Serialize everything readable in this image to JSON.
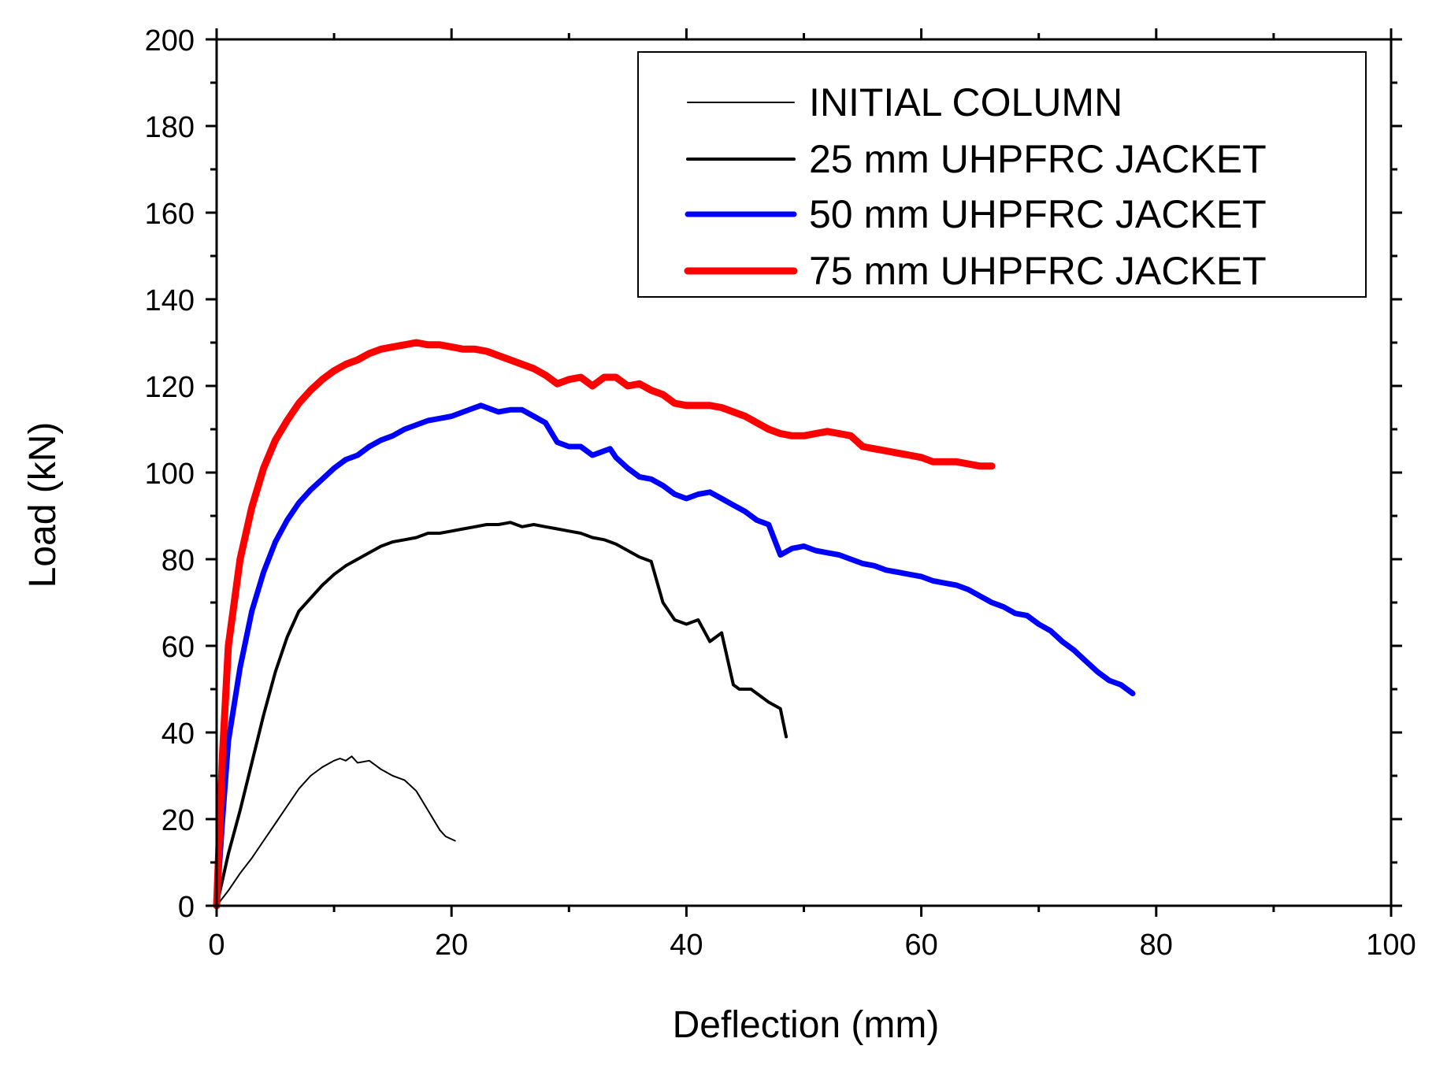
{
  "chart_data": {
    "type": "line",
    "title": "",
    "xlabel": "Deflection (mm)",
    "ylabel": "Load (kN)",
    "xlim": [
      0,
      100
    ],
    "ylim": [
      0,
      200
    ],
    "xticks": [
      0,
      20,
      40,
      60,
      80,
      100
    ],
    "yticks": [
      0,
      20,
      40,
      60,
      80,
      100,
      120,
      140,
      160,
      180,
      200
    ],
    "grid": false,
    "legend_position": "top-right",
    "series": [
      {
        "name": "INITIAL COLUMN",
        "color": "#000000",
        "style": "thin",
        "points": [
          [
            0,
            0
          ],
          [
            1,
            3.5
          ],
          [
            2,
            7.5
          ],
          [
            3,
            11
          ],
          [
            4,
            15
          ],
          [
            5,
            19
          ],
          [
            6,
            23
          ],
          [
            7,
            27
          ],
          [
            8,
            30
          ],
          [
            9,
            32
          ],
          [
            10,
            33.5
          ],
          [
            10.5,
            34
          ],
          [
            11,
            33.5
          ],
          [
            11.5,
            34.5
          ],
          [
            12,
            33
          ],
          [
            13,
            33.5
          ],
          [
            13.5,
            32.5
          ],
          [
            14,
            31.5
          ],
          [
            15,
            30
          ],
          [
            16,
            29
          ],
          [
            17,
            26.5
          ],
          [
            18,
            22
          ],
          [
            19,
            17.5
          ],
          [
            19.5,
            16
          ],
          [
            20.3,
            15
          ]
        ]
      },
      {
        "name": "25 mm UHPFRC JACKET",
        "color": "#000000",
        "style": "medium",
        "points": [
          [
            0,
            0
          ],
          [
            0.5,
            6
          ],
          [
            1,
            12
          ],
          [
            2,
            22
          ],
          [
            3,
            33
          ],
          [
            4,
            44
          ],
          [
            5,
            54
          ],
          [
            6,
            62
          ],
          [
            7,
            68
          ],
          [
            8,
            71
          ],
          [
            9,
            74
          ],
          [
            10,
            76.5
          ],
          [
            11,
            78.5
          ],
          [
            12,
            80
          ],
          [
            13,
            81.5
          ],
          [
            14,
            83
          ],
          [
            15,
            84
          ],
          [
            16,
            84.5
          ],
          [
            17,
            85
          ],
          [
            18,
            86
          ],
          [
            19,
            86
          ],
          [
            20,
            86.5
          ],
          [
            21,
            87
          ],
          [
            22,
            87.5
          ],
          [
            23,
            88
          ],
          [
            24,
            88
          ],
          [
            25,
            88.5
          ],
          [
            26,
            87.5
          ],
          [
            27,
            88
          ],
          [
            28,
            87.5
          ],
          [
            29,
            87
          ],
          [
            30,
            86.5
          ],
          [
            31,
            86
          ],
          [
            32,
            85
          ],
          [
            33,
            84.5
          ],
          [
            34,
            83.5
          ],
          [
            35,
            82
          ],
          [
            36,
            80.5
          ],
          [
            37,
            79.5
          ],
          [
            38,
            70
          ],
          [
            39,
            66
          ],
          [
            40,
            65
          ],
          [
            41,
            66
          ],
          [
            42,
            61
          ],
          [
            42.5,
            62
          ],
          [
            43,
            63
          ],
          [
            44,
            51
          ],
          [
            44.5,
            50
          ],
          [
            45.5,
            50
          ],
          [
            46,
            49
          ],
          [
            47,
            47
          ],
          [
            48,
            45.5
          ],
          [
            48.5,
            39
          ]
        ]
      },
      {
        "name": "50 mm UHPFRC JACKET",
        "color": "#0000ff",
        "style": "thick",
        "points": [
          [
            0,
            0
          ],
          [
            0.5,
            20
          ],
          [
            1,
            38
          ],
          [
            2,
            55
          ],
          [
            3,
            68
          ],
          [
            4,
            77
          ],
          [
            5,
            84
          ],
          [
            6,
            89
          ],
          [
            7,
            93
          ],
          [
            8,
            96
          ],
          [
            9,
            98.5
          ],
          [
            10,
            101
          ],
          [
            11,
            103
          ],
          [
            12,
            104
          ],
          [
            13,
            106
          ],
          [
            14,
            107.5
          ],
          [
            15,
            108.5
          ],
          [
            16,
            110
          ],
          [
            17,
            111
          ],
          [
            18,
            112
          ],
          [
            19,
            112.5
          ],
          [
            20,
            113
          ],
          [
            21,
            114
          ],
          [
            22,
            115
          ],
          [
            22.5,
            115.5
          ],
          [
            23,
            115
          ],
          [
            24,
            114
          ],
          [
            25,
            114.5
          ],
          [
            26,
            114.5
          ],
          [
            27,
            113
          ],
          [
            28,
            111.5
          ],
          [
            29,
            107
          ],
          [
            30,
            106
          ],
          [
            31,
            106
          ],
          [
            32,
            104
          ],
          [
            33,
            105
          ],
          [
            33.5,
            105.5
          ],
          [
            34,
            103.5
          ],
          [
            35,
            101
          ],
          [
            36,
            99
          ],
          [
            37,
            98.5
          ],
          [
            38,
            97
          ],
          [
            39,
            95
          ],
          [
            40,
            94
          ],
          [
            41,
            95
          ],
          [
            42,
            95.5
          ],
          [
            43,
            94
          ],
          [
            44,
            92.5
          ],
          [
            45,
            91
          ],
          [
            46,
            89
          ],
          [
            47,
            88
          ],
          [
            48,
            81
          ],
          [
            49,
            82.5
          ],
          [
            50,
            83
          ],
          [
            51,
            82
          ],
          [
            52,
            81.5
          ],
          [
            53,
            81
          ],
          [
            54,
            80
          ],
          [
            55,
            79
          ],
          [
            56,
            78.5
          ],
          [
            57,
            77.5
          ],
          [
            58,
            77
          ],
          [
            59,
            76.5
          ],
          [
            60,
            76
          ],
          [
            61,
            75
          ],
          [
            62,
            74.5
          ],
          [
            63,
            74
          ],
          [
            64,
            73
          ],
          [
            65,
            71.5
          ],
          [
            66,
            70
          ],
          [
            67,
            69
          ],
          [
            68,
            67.5
          ],
          [
            69,
            67
          ],
          [
            70,
            65
          ],
          [
            71,
            63.5
          ],
          [
            72,
            61
          ],
          [
            73,
            59
          ],
          [
            74,
            56.5
          ],
          [
            75,
            54
          ],
          [
            76,
            52
          ],
          [
            77,
            51
          ],
          [
            78,
            49
          ]
        ]
      },
      {
        "name": "75 mm UHPFRC JACKET",
        "color": "#ff0000",
        "style": "thicker",
        "points": [
          [
            0,
            0
          ],
          [
            0.5,
            35
          ],
          [
            1,
            60
          ],
          [
            2,
            80
          ],
          [
            3,
            92
          ],
          [
            4,
            101
          ],
          [
            5,
            107.5
          ],
          [
            6,
            112
          ],
          [
            7,
            116
          ],
          [
            8,
            119
          ],
          [
            9,
            121.5
          ],
          [
            10,
            123.5
          ],
          [
            11,
            125
          ],
          [
            12,
            126
          ],
          [
            13,
            127.5
          ],
          [
            14,
            128.5
          ],
          [
            15,
            129
          ],
          [
            16,
            129.5
          ],
          [
            17,
            130
          ],
          [
            18,
            129.5
          ],
          [
            19,
            129.5
          ],
          [
            20,
            129
          ],
          [
            21,
            128.5
          ],
          [
            22,
            128.5
          ],
          [
            23,
            128
          ],
          [
            24,
            127
          ],
          [
            25,
            126
          ],
          [
            26,
            125
          ],
          [
            27,
            124
          ],
          [
            28,
            122.5
          ],
          [
            29,
            120.5
          ],
          [
            30,
            121.5
          ],
          [
            31,
            122
          ],
          [
            32,
            120
          ],
          [
            33,
            122
          ],
          [
            34,
            122
          ],
          [
            35,
            120
          ],
          [
            36,
            120.5
          ],
          [
            37,
            119
          ],
          [
            38,
            118
          ],
          [
            39,
            116
          ],
          [
            40,
            115.5
          ],
          [
            41,
            115.5
          ],
          [
            42,
            115.5
          ],
          [
            43,
            115
          ],
          [
            44,
            114
          ],
          [
            45,
            113
          ],
          [
            46,
            111.5
          ],
          [
            47,
            110
          ],
          [
            48,
            109
          ],
          [
            49,
            108.5
          ],
          [
            50,
            108.5
          ],
          [
            51,
            109
          ],
          [
            52,
            109.5
          ],
          [
            53,
            109
          ],
          [
            54,
            108.5
          ],
          [
            55,
            106
          ],
          [
            56,
            105.5
          ],
          [
            57,
            105
          ],
          [
            58,
            104.5
          ],
          [
            59,
            104
          ],
          [
            60,
            103.5
          ],
          [
            61,
            102.5
          ],
          [
            62,
            102.5
          ],
          [
            63,
            102.5
          ],
          [
            64,
            102
          ],
          [
            65,
            101.5
          ],
          [
            66,
            101.5
          ]
        ]
      }
    ]
  }
}
